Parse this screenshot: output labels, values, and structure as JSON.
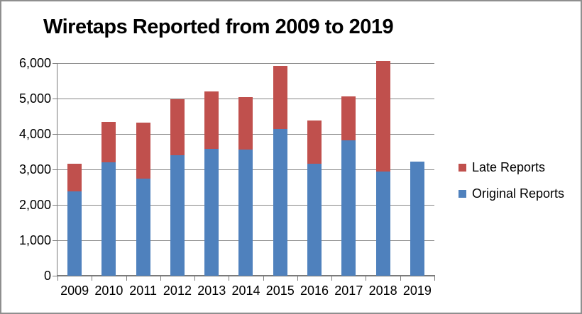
{
  "chart_data": {
    "type": "bar",
    "stacked": true,
    "title": "Wiretaps Reported from 2009 to 2019",
    "xlabel": "",
    "ylabel": "",
    "categories": [
      "2009",
      "2010",
      "2011",
      "2012",
      "2013",
      "2014",
      "2015",
      "2016",
      "2017",
      "2018",
      "2019"
    ],
    "series": [
      {
        "name": "Original Reports",
        "color": "#4F81BD",
        "values": [
          2376,
          3194,
          2732,
          3395,
          3576,
          3554,
          4148,
          3168,
          3813,
          2937,
          3225
        ]
      },
      {
        "name": "Late Reports",
        "color": "#C0504D",
        "values": [
          790,
          1150,
          1580,
          1580,
          1630,
          1490,
          1780,
          1210,
          1250,
          3130,
          0
        ]
      }
    ],
    "legend": [
      {
        "label": "Late Reports",
        "color": "#C0504D"
      },
      {
        "label": "Original Reports",
        "color": "#4F81BD"
      }
    ],
    "legend_position": "right",
    "ylim": [
      0,
      6000
    ],
    "ytick_interval": 1000,
    "ytick_labels": [
      "0",
      "1,000",
      "2,000",
      "3,000",
      "4,000",
      "5,000",
      "6,000"
    ],
    "grid": true,
    "gridline_color": "#878787",
    "axis_color": "#7A7A7A"
  }
}
